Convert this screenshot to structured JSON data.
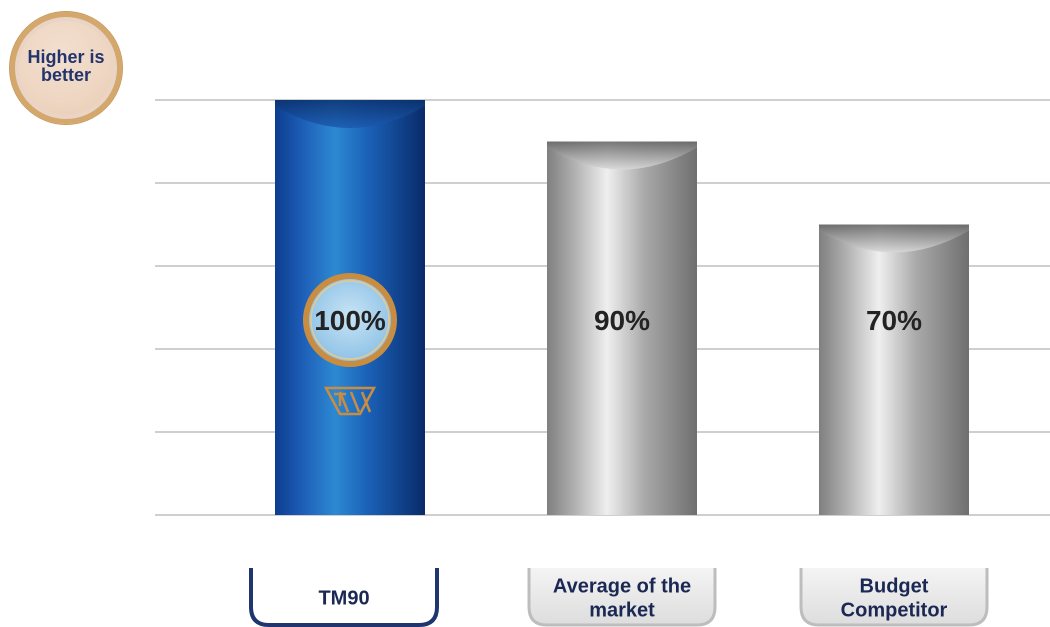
{
  "badge": {
    "text": "Higher is\nbetter"
  },
  "chart_data": {
    "type": "bar",
    "title": "",
    "xlabel": "",
    "ylabel": "",
    "ylim": [
      0,
      100
    ],
    "grid": true,
    "categories": [
      "TM90",
      "Average of the market",
      "Budget Competitor"
    ],
    "category_label_lines": [
      [
        "TM90"
      ],
      [
        "Average of the",
        "market"
      ],
      [
        "Budget",
        "Competitor"
      ]
    ],
    "values": [
      100,
      90,
      70
    ],
    "value_labels": [
      "100%",
      "90%",
      "70%"
    ],
    "colors": {
      "highlight": "#0b3e8f",
      "highlight_light": "#2c88d3",
      "highlight_dark": "#082a63",
      "bar": "#8d8d8d",
      "bar_light": "#e3e3e3",
      "bar_dark": "#6f6f6f",
      "grid": "#cfcfcf",
      "label_box_fill": "#ededed",
      "label_box_stroke": "#1f3570",
      "ring_gold": "#c98d42",
      "ring_fill": "#a9d0ea"
    }
  }
}
